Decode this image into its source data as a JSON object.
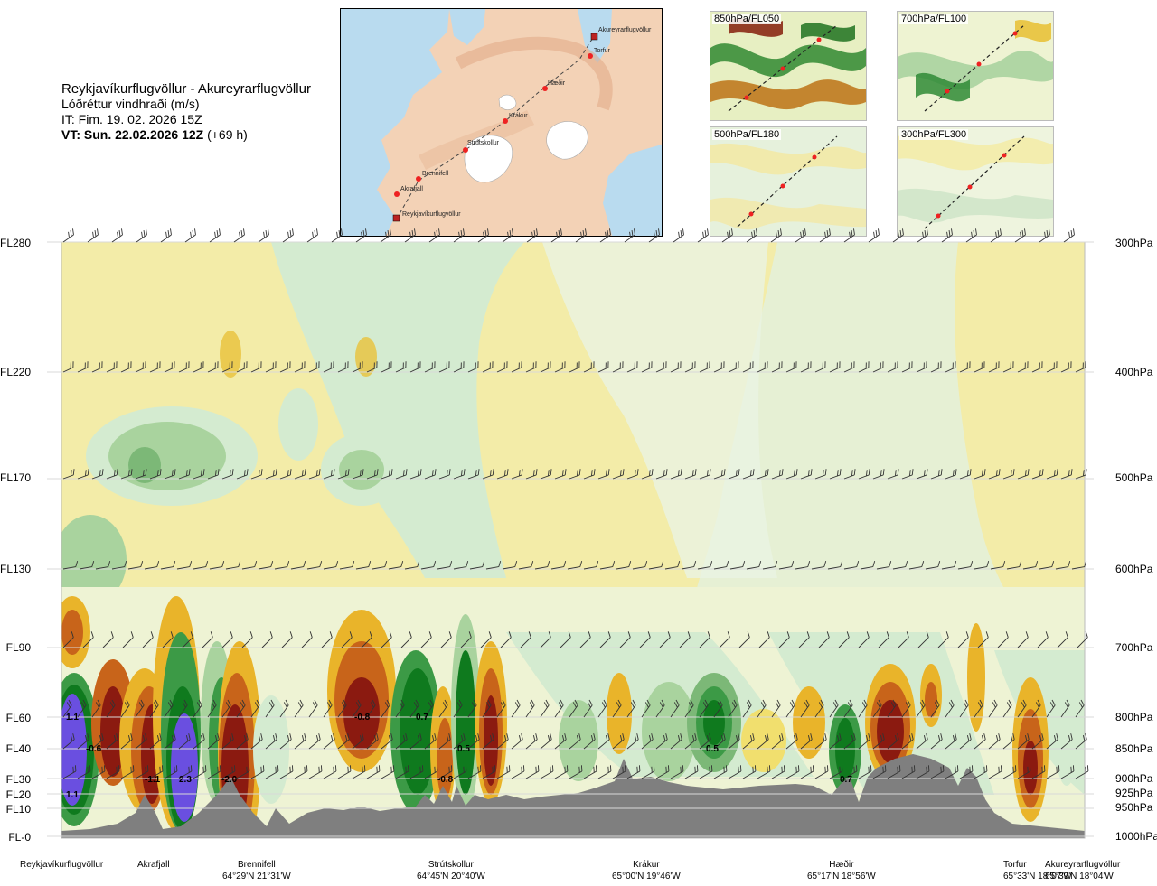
{
  "header": {
    "route": "Reykjavíkurflugvöllur - Akureyrarflugvöllur",
    "variable": "Lóðréttur vindhraði (m/s)",
    "issue_time": "IT: Fim. 19. 02. 2026 15Z",
    "valid_label": "VT: Sun. 22.02.2026 12Z",
    "valid_offset": "(+69 h)"
  },
  "map": {
    "waypoints": [
      "Reykjavíkurflugvöllur",
      "Akrafjall",
      "Brennifell",
      "Strútskollur",
      "Krákur",
      "Hæðir",
      "Torfur",
      "Akureyrarflugvöllur"
    ]
  },
  "panels": [
    {
      "label": "850hPa/FL050"
    },
    {
      "label": "700hPa/FL100"
    },
    {
      "label": "500hPa/FL180"
    },
    {
      "label": "300hPa/FL300"
    }
  ],
  "chart_data": {
    "type": "heatmap",
    "title": "Reykjavíkurflugvöllur - Akureyrarflugvöllur",
    "quantity": "Lóðréttur vindhraði (m/s)",
    "flight_levels": [
      "FL280",
      "FL220",
      "FL170",
      "FL130",
      "FL90",
      "FL60",
      "FL40",
      "FL30",
      "FL20",
      "FL10",
      "FL-0"
    ],
    "pressure_levels": [
      "300hPa",
      "400hPa",
      "500hPa",
      "600hPa",
      "700hPa",
      "800hPa",
      "850hPa",
      "900hPa",
      "925hPa",
      "950hPa",
      "1000hPa"
    ],
    "stations": [
      {
        "name": "Reykjavíkurflugvöllur",
        "coord": ""
      },
      {
        "name": "Akrafjall",
        "coord": ""
      },
      {
        "name": "Brennifell",
        "coord": "64°29'N 21°31'W"
      },
      {
        "name": "Strútskollur",
        "coord": "64°45'N 20°40'W"
      },
      {
        "name": "Krákur",
        "coord": "65°00'N 19°46'W"
      },
      {
        "name": "Hæðir",
        "coord": "65°17'N 18°56'W"
      },
      {
        "name": "Torfur",
        "coord": "65°33'N 18°07'W"
      },
      {
        "name": "Akureyrarflugvöllur",
        "coord": "65°39'N 18°04'W"
      }
    ],
    "value_labels": [
      "1.1",
      "-0.6",
      "1.1",
      "-1.1",
      "2.3",
      "-2.0",
      "-0.8",
      "0.7",
      "0.5",
      "-0.8",
      "0.5",
      "0.7"
    ],
    "colors": {
      "strong_down": "#8b1a10",
      "mid_down": "#c8641a",
      "light_down": "#e9b42a",
      "weak_down": "#f3eda8",
      "weak_up": "#d4ebd0",
      "light_up": "#8fc48c",
      "mid_up": "#3c9a46",
      "strong_up": "#0f7a1e",
      "extreme_up": "#6a4fe0",
      "terrain": "#7f7f7f"
    }
  }
}
